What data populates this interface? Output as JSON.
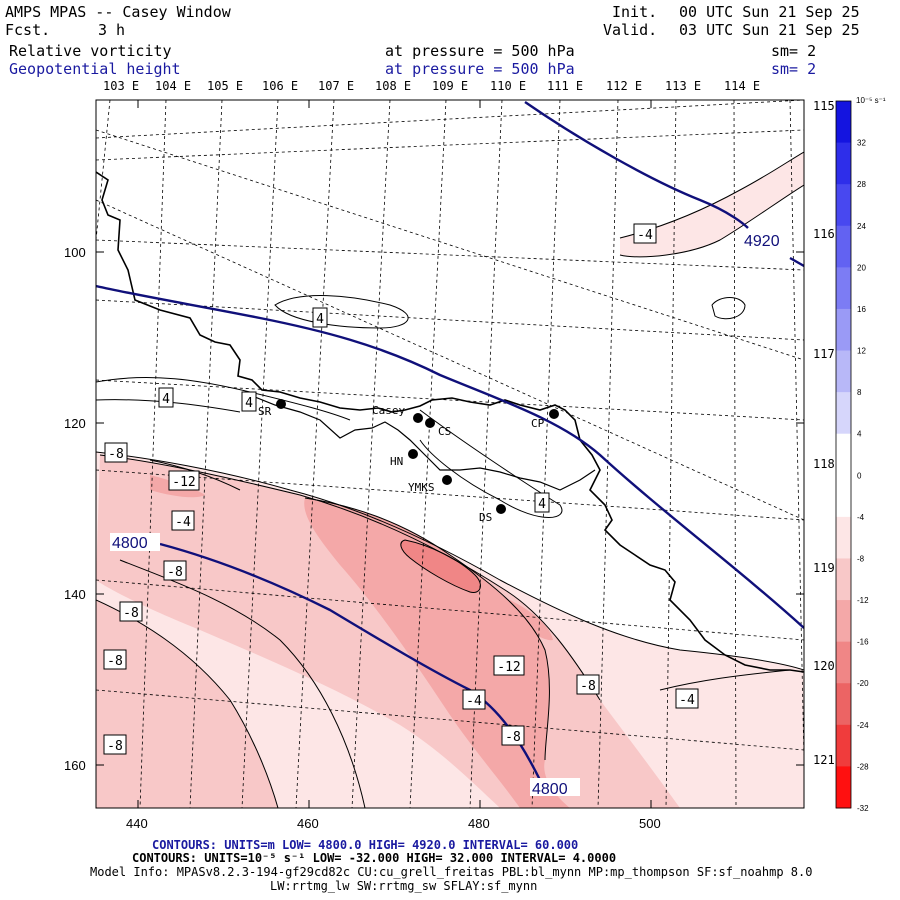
{
  "header": {
    "title": "AMPS MPAS -- Casey Window",
    "fcst_label": "Fcst.",
    "fcst_value": "3 h",
    "init_label": "Init.",
    "init_value": "00 UTC Sun 21 Sep 25",
    "valid_label": "Valid.",
    "valid_value": "03 UTC Sun 21 Sep 25",
    "field1_name": "Relative vorticity",
    "field1_pressure": "at pressure =  500 hPa",
    "field1_sm": "sm= 2",
    "field2_name": "Geopotential height",
    "field2_pressure": "at pressure =  500 hPa",
    "field2_sm": "sm= 2"
  },
  "lon_top": [
    "103 E",
    "104 E",
    "105 E",
    "106 E",
    "107 E",
    "108 E",
    "109 E",
    "110 E",
    "111 E",
    "112 E",
    "113 E",
    "114 E"
  ],
  "lon_right": [
    "115 E",
    "116 E",
    "117 E",
    "118 E",
    "119 E",
    "120 E",
    "121 E"
  ],
  "y_ticks": [
    "100",
    "120",
    "140",
    "160"
  ],
  "x_ticks": [
    "440",
    "460",
    "480",
    "500"
  ],
  "contour_labels": {
    "pos4": [
      "4",
      "4",
      "4",
      "4"
    ],
    "neg4": [
      "-4",
      "-4",
      "-4",
      "-4"
    ],
    "neg8": [
      "-8",
      "-8",
      "-8",
      "-8",
      "-8",
      "-8",
      "-8"
    ],
    "neg12": [
      "-12",
      "-12"
    ],
    "height": [
      "4920",
      "4800",
      "4800"
    ]
  },
  "stations": {
    "casey": "Casey",
    "cs": "CS",
    "sr": "SR",
    "cp": "CP",
    "hn": "HN",
    "ymks": "YMKS",
    "ds": "DS"
  },
  "colorbar": {
    "unit": "10⁻⁵ s⁻¹",
    "labels": [
      "32",
      "28",
      "24",
      "20",
      "16",
      "12",
      "8",
      "4",
      "0",
      "-4",
      "-8",
      "-12",
      "-16",
      "-20",
      "-24",
      "-28",
      "-32"
    ],
    "colors": [
      "#1414e0",
      "#2e2eea",
      "#4848f0",
      "#6262f2",
      "#7c7cf4",
      "#9a9af6",
      "#b8b8f8",
      "#d6d6fb",
      "#ffffff",
      "#ffffff",
      "#fde6e6",
      "#f8c8c8",
      "#f4a8a8",
      "#f08686",
      "#ec6464",
      "#f03c3c",
      "#ff1010"
    ]
  },
  "footer": {
    "line1": "CONTOURS:  UNITS=m  LOW=  4800.0          HIGH=  4920.0          INTERVAL=   60.000",
    "line2": "CONTOURS:  UNITS=10⁻⁵ s⁻¹  LOW=  -32.000        HIGH=  32.000       INTERVAL=   4.0000",
    "line3": "Model Info: MPASv8.2.3-194-gf29cd82c CU:cu_grell_freitas PBL:bl_mynn MP:mp_thompson SF:sf_noahmp 8.0",
    "line4": "LW:rrtmg_lw SW:rrtmg_sw SFLAY:sf_mynn"
  },
  "colors": {
    "height_contour": "#10107a",
    "positive_text": "#1a1aa0"
  }
}
